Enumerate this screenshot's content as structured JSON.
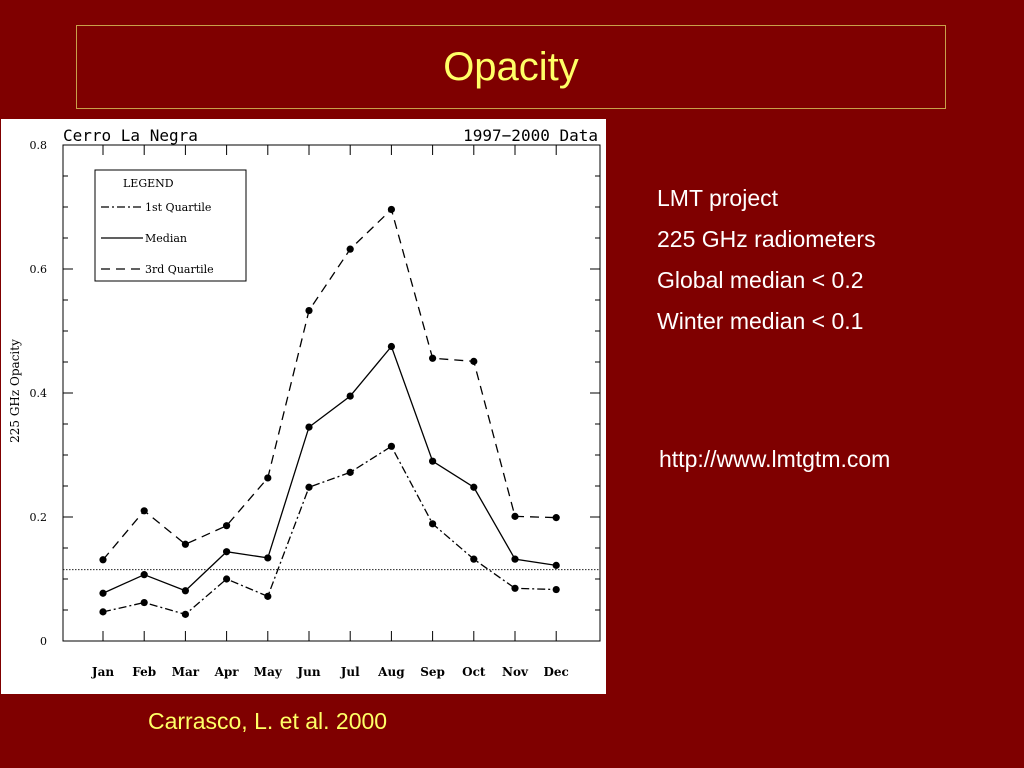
{
  "slide": {
    "title": "Opacity",
    "bullets": [
      "LMT project",
      "225 GHz radiometers",
      "Global median < 0.2",
      "Winter median < 0.1"
    ],
    "link": "http://www.lmtgtm.com",
    "citation": "Carrasco, L.  et al. 2000"
  },
  "colors": {
    "background": "#7f0000",
    "title": "#ffff66",
    "frame": "#c8a04a"
  },
  "chart_data": {
    "type": "line",
    "site_label": "Cerro La Negra",
    "period_label": "1997−2000 Data",
    "ylabel": "225 GHz Opacity",
    "categories": [
      "Jan",
      "Feb",
      "Mar",
      "Apr",
      "May",
      "Jun",
      "Jul",
      "Aug",
      "Sep",
      "Oct",
      "Nov",
      "Dec"
    ],
    "ylim": [
      0,
      0.8
    ],
    "yticks": [
      "0",
      "0.2",
      "0.4",
      "0.6",
      "0.8"
    ],
    "legend_title": "LEGEND",
    "legend_position": "top-left",
    "reference_line": 0.115,
    "series": [
      {
        "name": "1st Quartile",
        "style": "dashdot",
        "values": [
          0.047,
          0.062,
          0.043,
          0.1,
          0.072,
          0.248,
          0.272,
          0.314,
          0.189,
          0.132,
          0.085,
          0.083
        ]
      },
      {
        "name": "Median",
        "style": "solid",
        "values": [
          0.077,
          0.107,
          0.081,
          0.144,
          0.134,
          0.345,
          0.395,
          0.475,
          0.29,
          0.248,
          0.132,
          0.122
        ]
      },
      {
        "name": "3rd Quartile",
        "style": "dashed",
        "values": [
          0.131,
          0.21,
          0.156,
          0.186,
          0.263,
          0.533,
          0.632,
          0.696,
          0.456,
          0.451,
          0.201,
          0.199
        ]
      }
    ]
  }
}
